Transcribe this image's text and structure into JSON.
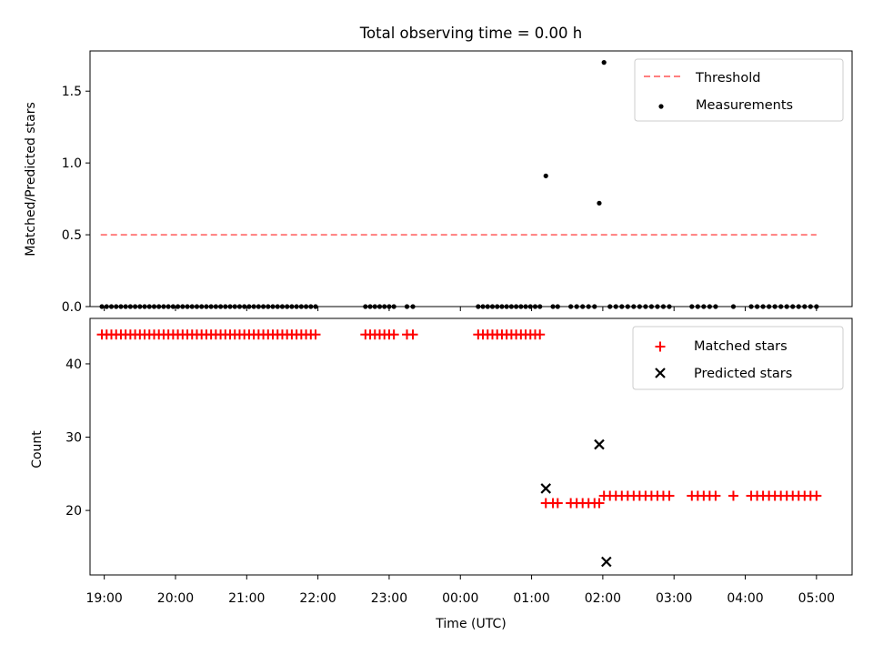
{
  "figure": {
    "title": "Total observing time = 0.00 h"
  },
  "colors": {
    "threshold": "#ff7f7f",
    "measurement": "#000000",
    "matched": "#ff0000",
    "predicted": "#000000"
  },
  "chart_data": [
    {
      "type": "scatter",
      "panel": "top",
      "title": "Total observing time = 0.00 h",
      "xlabel": "",
      "ylabel": "Matched/Predicted stars",
      "xlim": [
        "18:48",
        "05:30"
      ],
      "ylim": [
        0.0,
        1.78
      ],
      "x_ticks": [
        "19:00",
        "20:00",
        "21:00",
        "22:00",
        "23:00",
        "00:00",
        "01:00",
        "02:00",
        "03:00",
        "04:00",
        "05:00"
      ],
      "y_ticks": [
        "0.0",
        "0.5",
        "1.0",
        "1.5"
      ],
      "grid": false,
      "legend": {
        "placement": "top-right",
        "entries": [
          "Threshold",
          "Measurements"
        ]
      },
      "threshold": {
        "name": "Threshold",
        "y": 0.5,
        "x_range": [
          "18:57",
          "05:00"
        ],
        "style": "dashed"
      },
      "series": [
        {
          "name": "Measurements",
          "x": [
            "18:58",
            "19:02",
            "19:06",
            "19:10",
            "19:14",
            "19:18",
            "19:22",
            "19:26",
            "19:30",
            "19:34",
            "19:38",
            "19:42",
            "19:46",
            "19:50",
            "19:54",
            "19:58",
            "20:02",
            "20:06",
            "20:10",
            "20:14",
            "20:18",
            "20:22",
            "20:26",
            "20:30",
            "20:34",
            "20:38",
            "20:42",
            "20:46",
            "20:50",
            "20:54",
            "20:58",
            "21:02",
            "21:06",
            "21:10",
            "21:14",
            "21:18",
            "21:22",
            "21:26",
            "21:30",
            "21:34",
            "21:38",
            "21:42",
            "21:46",
            "21:50",
            "21:54",
            "21:58",
            "22:40",
            "22:44",
            "22:48",
            "22:52",
            "22:56",
            "23:00",
            "23:04",
            "23:15",
            "23:20",
            "00:15",
            "00:19",
            "00:23",
            "00:27",
            "00:31",
            "00:35",
            "00:39",
            "00:43",
            "00:47",
            "00:51",
            "00:55",
            "00:59",
            "01:03",
            "01:07",
            "01:12",
            "01:18",
            "01:22",
            "01:33",
            "01:38",
            "01:43",
            "01:48",
            "01:53",
            "01:57",
            "02:01",
            "02:06",
            "02:11",
            "02:16",
            "02:21",
            "02:26",
            "02:31",
            "02:36",
            "02:41",
            "02:46",
            "02:51",
            "02:56",
            "03:15",
            "03:20",
            "03:25",
            "03:30",
            "03:35",
            "03:50",
            "04:05",
            "04:10",
            "04:15",
            "04:20",
            "04:25",
            "04:30",
            "04:35",
            "04:40",
            "04:45",
            "04:50",
            "04:55",
            "05:00"
          ],
          "y": [
            0,
            0,
            0,
            0,
            0,
            0,
            0,
            0,
            0,
            0,
            0,
            0,
            0,
            0,
            0,
            0,
            0,
            0,
            0,
            0,
            0,
            0,
            0,
            0,
            0,
            0,
            0,
            0,
            0,
            0,
            0,
            0,
            0,
            0,
            0,
            0,
            0,
            0,
            0,
            0,
            0,
            0,
            0,
            0,
            0,
            0,
            0,
            0,
            0,
            0,
            0,
            0,
            0,
            0,
            0,
            0,
            0,
            0,
            0,
            0,
            0,
            0,
            0,
            0,
            0,
            0,
            0,
            0,
            0,
            0.91,
            0,
            0,
            0,
            0,
            0,
            0,
            0,
            0.72,
            1.7,
            0,
            0,
            0,
            0,
            0,
            0,
            0,
            0,
            0,
            0,
            0,
            0,
            0,
            0,
            0,
            0,
            0,
            0,
            0,
            0,
            0,
            0,
            0,
            0,
            0,
            0,
            0,
            0,
            0
          ]
        }
      ]
    },
    {
      "type": "scatter",
      "panel": "bottom",
      "title": "",
      "xlabel": "Time (UTC)",
      "ylabel": "Count",
      "xlim": [
        "18:48",
        "05:30"
      ],
      "ylim": [
        11.2,
        46.2
      ],
      "x_ticks": [
        "19:00",
        "20:00",
        "21:00",
        "22:00",
        "23:00",
        "00:00",
        "01:00",
        "02:00",
        "03:00",
        "04:00",
        "05:00"
      ],
      "y_ticks": [
        "20",
        "30",
        "40"
      ],
      "grid": false,
      "legend": {
        "placement": "top-right",
        "entries": [
          "Matched stars",
          "Predicted stars"
        ]
      },
      "series": [
        {
          "name": "Matched stars",
          "marker": "+",
          "x": [
            "18:58",
            "19:02",
            "19:06",
            "19:10",
            "19:14",
            "19:18",
            "19:22",
            "19:26",
            "19:30",
            "19:34",
            "19:38",
            "19:42",
            "19:46",
            "19:50",
            "19:54",
            "19:58",
            "20:02",
            "20:06",
            "20:10",
            "20:14",
            "20:18",
            "20:22",
            "20:26",
            "20:30",
            "20:34",
            "20:38",
            "20:42",
            "20:46",
            "20:50",
            "20:54",
            "20:58",
            "21:02",
            "21:06",
            "21:10",
            "21:14",
            "21:18",
            "21:22",
            "21:26",
            "21:30",
            "21:34",
            "21:38",
            "21:42",
            "21:46",
            "21:50",
            "21:54",
            "21:58",
            "22:40",
            "22:44",
            "22:48",
            "22:52",
            "22:56",
            "23:00",
            "23:04",
            "23:15",
            "23:20",
            "00:15",
            "00:19",
            "00:23",
            "00:27",
            "00:31",
            "00:35",
            "00:39",
            "00:43",
            "00:47",
            "00:51",
            "00:55",
            "00:59",
            "01:03",
            "01:07",
            "01:12",
            "01:18",
            "01:22",
            "01:33",
            "01:38",
            "01:43",
            "01:48",
            "01:53",
            "01:57",
            "02:01",
            "02:06",
            "02:11",
            "02:16",
            "02:21",
            "02:26",
            "02:31",
            "02:36",
            "02:41",
            "02:46",
            "02:51",
            "02:56",
            "03:15",
            "03:20",
            "03:25",
            "03:30",
            "03:35",
            "03:50",
            "04:05",
            "04:10",
            "04:15",
            "04:20",
            "04:25",
            "04:30",
            "04:35",
            "04:40",
            "04:45",
            "04:50",
            "04:55",
            "05:00"
          ],
          "y": [
            44,
            44,
            44,
            44,
            44,
            44,
            44,
            44,
            44,
            44,
            44,
            44,
            44,
            44,
            44,
            44,
            44,
            44,
            44,
            44,
            44,
            44,
            44,
            44,
            44,
            44,
            44,
            44,
            44,
            44,
            44,
            44,
            44,
            44,
            44,
            44,
            44,
            44,
            44,
            44,
            44,
            44,
            44,
            44,
            44,
            44,
            44,
            44,
            44,
            44,
            44,
            44,
            44,
            44,
            44,
            44,
            44,
            44,
            44,
            44,
            44,
            44,
            44,
            44,
            44,
            44,
            44,
            44,
            44,
            21,
            21,
            21,
            21,
            21,
            21,
            21,
            21,
            21,
            22,
            22,
            22,
            22,
            22,
            22,
            22,
            22,
            22,
            22,
            22,
            22,
            22,
            22,
            22,
            22,
            22,
            22,
            22,
            22,
            22,
            22,
            22,
            22,
            22,
            22,
            22,
            22,
            22,
            22
          ]
        },
        {
          "name": "Predicted stars",
          "marker": "x",
          "x": [
            "01:12",
            "01:57",
            "02:03"
          ],
          "y": [
            23,
            29,
            13
          ]
        }
      ]
    }
  ]
}
